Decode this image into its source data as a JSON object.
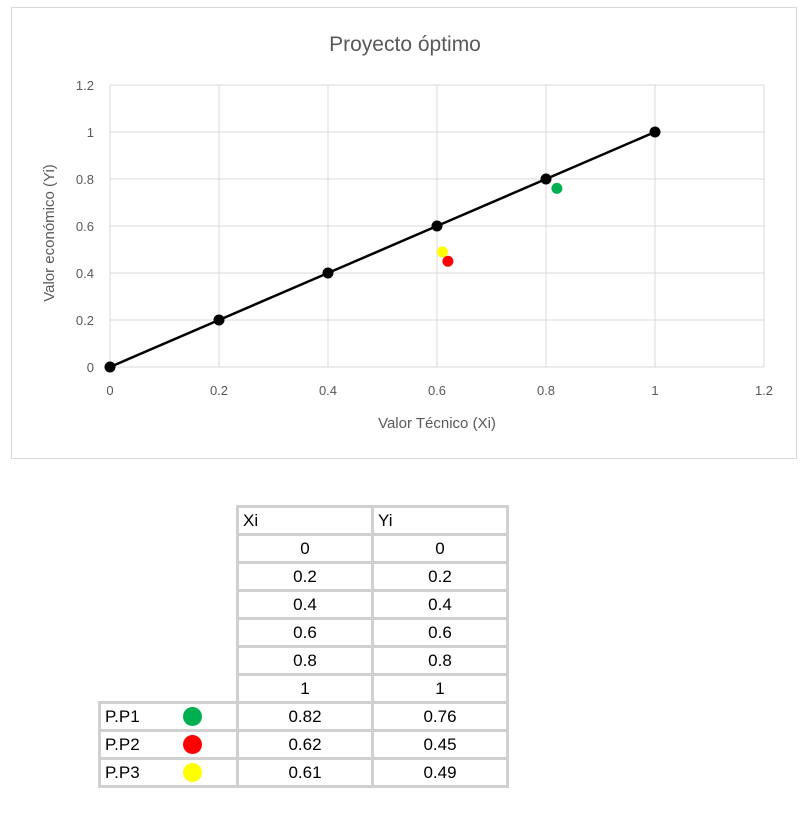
{
  "chart_data": {
    "type": "scatter",
    "title": "Proyecto óptimo",
    "xlabel": "Valor Técnico (Xi)",
    "ylabel": "Valor económico (Yi)",
    "xlim": [
      0,
      1.2
    ],
    "ylim": [
      0,
      1.2
    ],
    "xticks": [
      "0",
      "0.2",
      "0.4",
      "0.6",
      "0.8",
      "1",
      "1.2"
    ],
    "yticks": [
      "0",
      "0.2",
      "0.4",
      "0.6",
      "0.8",
      "1",
      "1.2"
    ],
    "grid": true,
    "legend": "none",
    "series": [
      {
        "color": "#000000",
        "line": true,
        "x": [
          0,
          0.2,
          0.4,
          0.6,
          0.8,
          1
        ],
        "y": [
          0,
          0.2,
          0.4,
          0.6,
          0.8,
          1
        ]
      },
      {
        "color": "#00b050",
        "line": false,
        "x": [
          0.82
        ],
        "y": [
          0.76
        ]
      },
      {
        "color": "#ff0000",
        "line": false,
        "x": [
          0.62
        ],
        "y": [
          0.45
        ]
      },
      {
        "color": "#ffff00",
        "line": false,
        "x": [
          0.61
        ],
        "y": [
          0.49
        ]
      }
    ]
  },
  "table": {
    "headers": {
      "x": "Xi",
      "y": "Yi"
    },
    "rows": [
      {
        "label": "",
        "x": "0",
        "y": "0"
      },
      {
        "label": "",
        "x": "0.2",
        "y": "0.2"
      },
      {
        "label": "",
        "x": "0.4",
        "y": "0.4"
      },
      {
        "label": "",
        "x": "0.6",
        "y": "0.6"
      },
      {
        "label": "",
        "x": "0.8",
        "y": "0.8"
      },
      {
        "label": "",
        "x": "1",
        "y": "1"
      },
      {
        "label": "P.P1",
        "dot_color": "#00b050",
        "x": "0.82",
        "y": "0.76"
      },
      {
        "label": "P.P2",
        "dot_color": "#ff0000",
        "x": "0.62",
        "y": "0.45"
      },
      {
        "label": "P.P3",
        "dot_color": "#ffff00",
        "x": "0.61",
        "y": "0.49"
      }
    ]
  }
}
